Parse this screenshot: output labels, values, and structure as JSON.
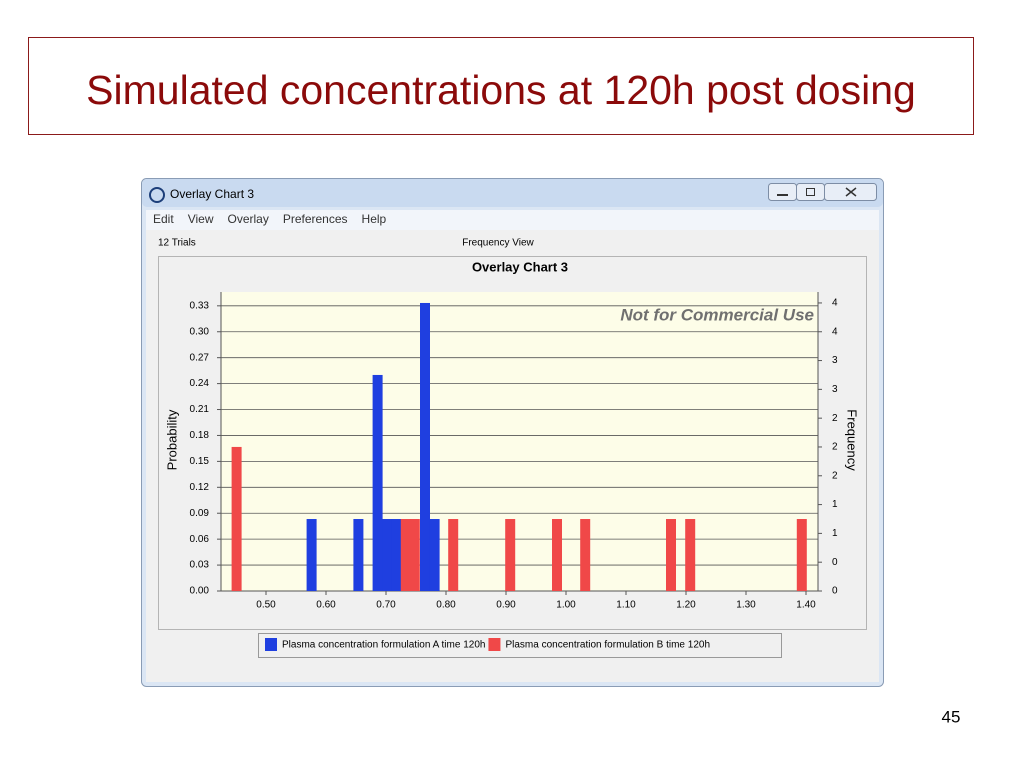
{
  "slide_title": "Simulated concentrations at 120h post dosing",
  "page_number": "45",
  "window": {
    "title": "Overlay Chart 3",
    "menu": [
      "Edit",
      "View",
      "Overlay",
      "Preferences",
      "Help"
    ],
    "status_left": "12 Trials",
    "status_center": "Frequency View"
  },
  "chart_data": {
    "type": "bar",
    "title": "Overlay Chart 3",
    "watermark": "Not for Commercial Use",
    "ylabel": "Probability",
    "y2label": "Frequency",
    "grid": true,
    "xlim": [
      0.425,
      1.42
    ],
    "xticks": [
      {
        "value": 0.5,
        "label": "0.50"
      },
      {
        "value": 0.6,
        "label": "0.60"
      },
      {
        "value": 0.7,
        "label": "0.70"
      },
      {
        "value": 0.8,
        "label": "0.80"
      },
      {
        "value": 0.9,
        "label": "0.90"
      },
      {
        "value": 1.0,
        "label": "1.00"
      },
      {
        "value": 1.1,
        "label": "1.10"
      },
      {
        "value": 1.2,
        "label": "1.20"
      },
      {
        "value": 1.3,
        "label": "1.30"
      },
      {
        "value": 1.4,
        "label": "1.40"
      }
    ],
    "ylim": [
      0,
      0.346
    ],
    "yticks": [
      {
        "value": 0,
        "label": "0.00"
      },
      {
        "value": 0.03,
        "label": "0.03"
      },
      {
        "value": 0.06,
        "label": "0.06"
      },
      {
        "value": 0.09,
        "label": "0.09"
      },
      {
        "value": 0.12,
        "label": "0.12"
      },
      {
        "value": 0.15,
        "label": "0.15"
      },
      {
        "value": 0.18,
        "label": "0.18"
      },
      {
        "value": 0.21,
        "label": "0.21"
      },
      {
        "value": 0.24,
        "label": "0.24"
      },
      {
        "value": 0.27,
        "label": "0.27"
      },
      {
        "value": 0.3,
        "label": "0.30"
      },
      {
        "value": 0.33,
        "label": "0.33"
      }
    ],
    "y2lim": [
      0,
      4.152
    ],
    "y2ticks": [
      0,
      {
        "value": 0.4,
        "label": "0"
      },
      {
        "value": 0.8,
        "label": "1"
      },
      {
        "value": 1.2,
        "label": "1"
      },
      {
        "value": 1.6,
        "label": "2"
      },
      {
        "value": 2.0,
        "label": "2"
      },
      {
        "value": 2.4,
        "label": "2"
      },
      {
        "value": 2.8,
        "label": "3"
      },
      {
        "value": 3.2,
        "label": "3"
      },
      {
        "value": 3.6,
        "label": "4"
      },
      {
        "value": 4.0,
        "label": "4"
      }
    ],
    "series": [
      {
        "name": "Plasma concentration formulation A time 120h",
        "color": "#1f3fe0",
        "x": [
          0.576,
          0.654,
          0.686,
          0.702,
          0.718,
          0.765,
          0.781
        ],
        "values": [
          0.0833,
          0.0833,
          0.25,
          0.0833,
          0.0833,
          0.3333,
          0.0833
        ]
      },
      {
        "name": "Plasma concentration formulation B time 120h",
        "color": "#f04848",
        "x": [
          0.451,
          0.733,
          0.748,
          0.812,
          0.907,
          0.985,
          1.032,
          1.175,
          1.207,
          1.393
        ],
        "values": [
          0.1667,
          0.0833,
          0.0833,
          0.0833,
          0.0833,
          0.0833,
          0.0833,
          0.0833,
          0.0833,
          0.0833
        ]
      }
    ]
  }
}
